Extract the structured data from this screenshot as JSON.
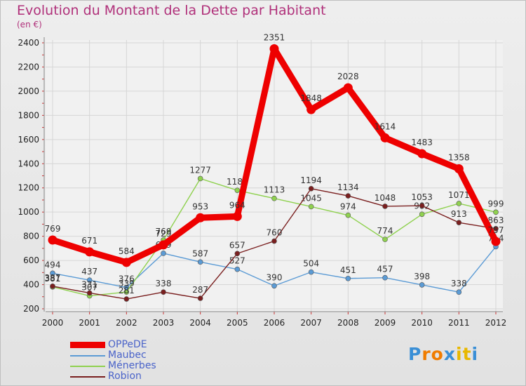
{
  "chart_data": {
    "type": "line",
    "title": "Evolution du Montant de la Dette par Habitant",
    "subtitle": "(en €)",
    "xlabel": "",
    "ylabel": "",
    "x": [
      "2000",
      "2001",
      "2002",
      "2003",
      "2004",
      "2005",
      "2006",
      "2007",
      "2008",
      "2009",
      "2010",
      "2011",
      "2012"
    ],
    "ylim": [
      200,
      2400
    ],
    "yticks": [
      200,
      400,
      600,
      800,
      1000,
      1200,
      1400,
      1600,
      1800,
      2000,
      2200,
      2400
    ],
    "grid": true,
    "legend_position": "bottom-left",
    "series": [
      {
        "name": "OPPeDE",
        "color": "#ee0000",
        "values": [
          769,
          671,
          584,
          729,
          953,
          964,
          2351,
          1848,
          2028,
          1614,
          1483,
          1358,
          757
        ]
      },
      {
        "name": "Maubec",
        "color": "#5b9bd5",
        "values": [
          494,
          437,
          376,
          659,
          587,
          527,
          390,
          504,
          451,
          457,
          398,
          338,
          714
        ]
      },
      {
        "name": "Ménerbes",
        "color": "#8fd14f",
        "values": [
          381,
          307,
          339,
          769,
          1277,
          1180,
          1113,
          1045,
          974,
          774,
          982,
          1071,
          999
        ]
      },
      {
        "name": "Robion",
        "color": "#7a1f1f",
        "values": [
          387,
          331,
          281,
          338,
          287,
          657,
          760,
          1194,
          1134,
          1048,
          1053,
          913,
          863
        ]
      }
    ]
  },
  "logo": {
    "text": "Proxiti",
    "letters": [
      "P",
      "r",
      "o",
      "x",
      "i",
      "t",
      "i"
    ],
    "colors": [
      "#3a8fd6",
      "#f07c00",
      "#f07c00",
      "#3a8fd6",
      "#e8b800",
      "#e8b800",
      "#3a8fd6"
    ]
  }
}
